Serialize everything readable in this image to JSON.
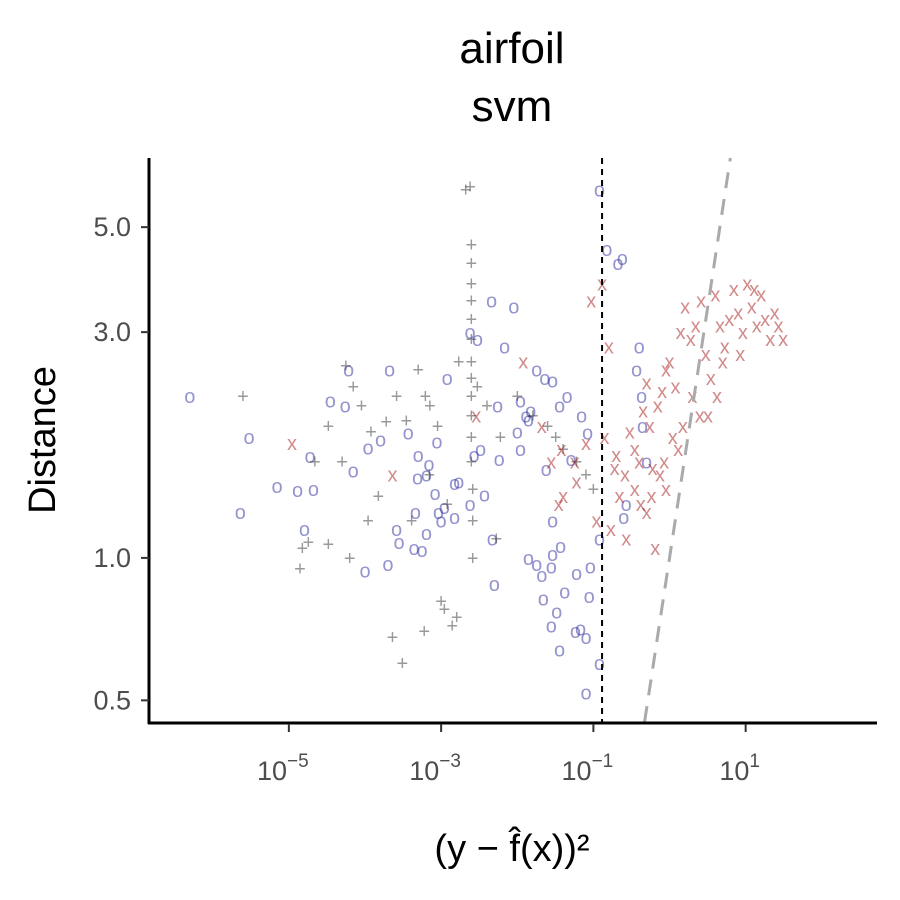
{
  "chart_data": {
    "type": "scatter",
    "title": [
      "airfoil",
      "svm"
    ],
    "xlabel": "(y − f̂(x))²",
    "ylabel": "Distance",
    "x_scale": "log10",
    "y_scale": "log10",
    "xlim": [
      1.5e-07,
      500
    ],
    "ylim": [
      0.45,
      7.0
    ],
    "x_ticks": [
      {
        "value": 1e-05,
        "base": "10",
        "exp": "−5"
      },
      {
        "value": 0.001,
        "base": "10",
        "exp": "−3"
      },
      {
        "value": 0.1,
        "base": "10",
        "exp": "−1"
      },
      {
        "value": 10,
        "base": "10",
        "exp": "1"
      }
    ],
    "y_ticks": [
      {
        "value": 0.5,
        "label": "0.5"
      },
      {
        "value": 1.0,
        "label": "1.0"
      },
      {
        "value": 3.0,
        "label": "3.0"
      },
      {
        "value": 5.0,
        "label": "5.0"
      }
    ],
    "grid": false,
    "legend": "none",
    "reference_lines": [
      {
        "type": "vertical",
        "x": 0.13,
        "style": "dashed",
        "color": "#000000"
      },
      {
        "type": "line",
        "style": "dashed",
        "color": "#aaaaaa",
        "points": [
          [
            0.47,
            0.45
          ],
          [
            6.3,
            7.0
          ]
        ]
      }
    ],
    "colors": {
      "o": "#2a2aa0",
      "plus": "#333333",
      "x": "#a31515"
    },
    "series": [
      {
        "marker": "o",
        "x": [
          5e-07,
          2.3e-06,
          1.6e-05,
          0.00026,
          0.00046,
          0.0001,
          0.0002,
          1.3e-05,
          1.9e-05,
          0.00016,
          3e-06,
          7e-06,
          2.1e-05,
          7e-05,
          0.00011,
          0.00037,
          0.0005,
          0.00064,
          3.5e-05,
          5.5e-05,
          6.1e-05,
          0.00021,
          0.0012,
          0.00044,
          0.00056,
          0.00028,
          0.00049,
          0.00064,
          0.00092,
          0.00083,
          0.0015,
          0.00069,
          0.00088,
          0.0015,
          0.0024,
          0.0037,
          0.0058,
          0.011,
          0.014,
          0.011,
          0.015,
          0.029,
          0.036,
          0.024,
          0.051,
          0.084,
          0.029,
          0.037,
          0.028,
          0.091,
          0.06,
          0.088,
          0.014,
          0.018,
          0.042,
          0.022,
          0.028,
          0.033,
          0.058,
          0.021,
          0.036,
          0.08,
          0.12,
          0.08,
          0.068,
          0.12,
          0.25,
          0.27,
          0.5,
          0.44,
          0.43,
          0.37,
          0.4,
          0.21,
          0.15,
          0.24,
          0.12,
          0.0046,
          0.009,
          0.0024,
          0.0068,
          0.003,
          0.018,
          0.0055,
          0.013,
          0.023,
          0.045,
          0.07,
          0.01,
          0.0033,
          0.0027,
          0.0017,
          0.0011,
          0.001,
          0.0047,
          0.029,
          0.005
        ],
        "y": [
          2.2,
          1.25,
          1.15,
          1.15,
          1.25,
          0.94,
          0.97,
          1.39,
          1.64,
          1.78,
          1.8,
          1.42,
          1.4,
          1.53,
          1.71,
          1.84,
          1.65,
          1.5,
          2.15,
          2.1,
          2.5,
          2.5,
          2.4,
          1.05,
          1.04,
          1.08,
          1.48,
          1.13,
          1.25,
          1.37,
          1.44,
          1.58,
          1.76,
          1.22,
          1.3,
          1.36,
          1.62,
          1.7,
          1.96,
          2.15,
          2.05,
          2.37,
          2.1,
          1.54,
          1.62,
          1.84,
          1.2,
          1.06,
          0.96,
          0.96,
          0.93,
          0.83,
          1.0,
          0.97,
          0.85,
          0.82,
          0.72,
          0.77,
          0.7,
          0.92,
          0.64,
          0.68,
          0.6,
          0.52,
          0.71,
          1.1,
          1.22,
          1.3,
          1.6,
          1.9,
          2.2,
          2.5,
          2.8,
          4.2,
          4.5,
          4.3,
          6.0,
          3.5,
          3.4,
          3.0,
          2.8,
          2.9,
          2.5,
          2.1,
          2.0,
          2.4,
          2.2,
          2.0,
          1.85,
          1.7,
          1.65,
          1.45,
          1.28,
          1.2,
          1.1,
          1.02,
          0.88
        ]
      },
      {
        "marker": "plus",
        "x": [
          2.5e-06,
          1.4e-05,
          1.8e-05,
          2.2e-05,
          3.3e-05,
          5e-05,
          5.6e-05,
          7e-05,
          9e-05,
          0.00012,
          0.00019,
          0.00026,
          0.00035,
          0.0005,
          0.00062,
          0.00071,
          0.0009,
          0.0012,
          0.0017,
          0.0021,
          0.0024,
          0.0025,
          0.0025,
          0.0025,
          0.0025,
          0.0025,
          0.0025,
          0.0025,
          0.0025,
          0.0025,
          0.0025,
          0.0025,
          0.0025,
          0.0026,
          0.0026,
          0.0026,
          0.003,
          0.004,
          0.006,
          0.01,
          0.016,
          0.025,
          0.032,
          0.04,
          0.06,
          0.08,
          0.1,
          0.00015,
          0.00041,
          0.0011,
          0.0016,
          0.00023,
          0.00031,
          0.0006,
          0.001,
          0.0014,
          3.3e-05,
          6.3e-05,
          1.5e-05,
          0.00011,
          0.0007,
          0.0053
        ],
        "y": [
          2.2,
          0.95,
          1.08,
          1.6,
          1.07,
          1.6,
          2.55,
          2.3,
          2.1,
          1.85,
          1.94,
          2.2,
          1.95,
          2.5,
          2.2,
          2.1,
          1.9,
          1.3,
          2.6,
          6.0,
          6.1,
          4.6,
          4.2,
          3.8,
          3.5,
          3.2,
          2.9,
          2.6,
          2.4,
          2.2,
          2.0,
          1.8,
          1.6,
          1.4,
          1.2,
          1.0,
          2.3,
          2.1,
          1.8,
          2.2,
          2.0,
          1.9,
          1.8,
          1.7,
          1.6,
          1.5,
          1.4,
          1.35,
          1.2,
          0.78,
          0.75,
          0.68,
          0.6,
          0.7,
          0.81,
          0.72,
          1.9,
          1.0,
          1.05,
          1.2,
          1.5,
          1.1
        ]
      },
      {
        "marker": "x",
        "x": [
          1.1e-05,
          0.00023,
          0.0029,
          0.012,
          0.021,
          0.038,
          0.057,
          0.094,
          0.13,
          0.16,
          0.19,
          0.22,
          0.26,
          0.3,
          0.35,
          0.4,
          0.45,
          0.5,
          0.55,
          0.6,
          0.7,
          0.8,
          0.9,
          1.0,
          1.2,
          1.4,
          1.6,
          1.9,
          2.2,
          2.6,
          3.0,
          3.5,
          4.0,
          4.6,
          5.3,
          6.1,
          7.0,
          8.0,
          9.2,
          10.5,
          12,
          14,
          16,
          18,
          21,
          24,
          27,
          31,
          0.9,
          1.5,
          2.5,
          4.2,
          0.27,
          0.17,
          0.11,
          0.08,
          0.06,
          0.04,
          0.035,
          0.028,
          0.5,
          0.65,
          0.85,
          1.1,
          1.3,
          0.35,
          0.42,
          2.0,
          3.2,
          5.0,
          8.5,
          13,
          0.75,
          0.58,
          0.14,
          0.2
        ],
        "y": [
          1.75,
          1.5,
          2.0,
          2.6,
          1.9,
          1.7,
          1.6,
          3.5,
          3.8,
          2.8,
          1.55,
          1.35,
          1.5,
          1.85,
          1.7,
          1.6,
          2.05,
          2.35,
          1.9,
          1.55,
          2.1,
          2.25,
          2.5,
          2.6,
          2.3,
          3.0,
          3.4,
          2.9,
          3.1,
          3.5,
          2.7,
          2.4,
          3.6,
          3.1,
          2.8,
          3.2,
          3.7,
          3.3,
          3.0,
          3.8,
          3.4,
          3.1,
          3.6,
          3.2,
          2.9,
          3.3,
          3.1,
          2.9,
          1.4,
          1.9,
          2.0,
          2.2,
          1.1,
          1.15,
          1.2,
          1.75,
          1.45,
          1.35,
          1.3,
          1.6,
          1.25,
          1.05,
          1.6,
          1.8,
          1.7,
          1.4,
          1.3,
          2.2,
          2.0,
          2.6,
          2.7,
          3.7,
          1.5,
          1.35,
          1.8,
          1.65
        ]
      }
    ]
  }
}
